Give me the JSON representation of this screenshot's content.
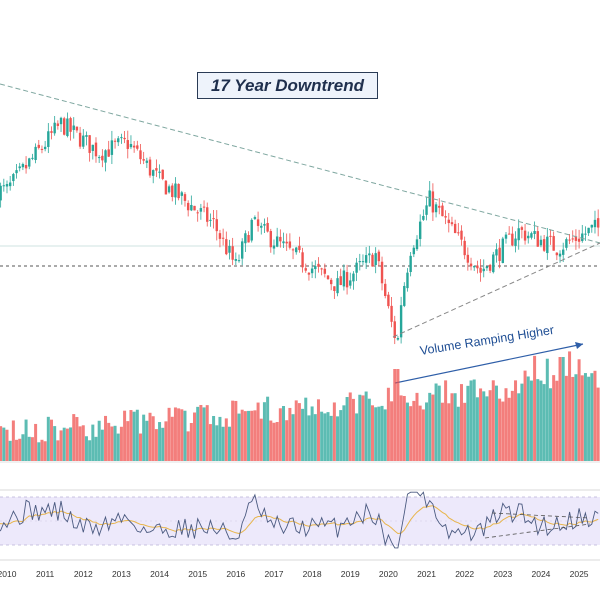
{
  "annotations": {
    "title": "17 Year Downtrend",
    "volume_note": "Volume Ramping Higher"
  },
  "colors": {
    "up": "#26a69a",
    "down": "#ef5350",
    "trendline": "#7fa7a0",
    "annotation_border": "#2a3b55",
    "arrow": "#2e5ea8",
    "rsi_line": "#4b5a80",
    "rsi_ma": "#e8b54b",
    "rsi_band": "#ede9fb"
  },
  "chart_data": [
    {
      "type": "candlestick",
      "period": "monthly",
      "x_tick_labels": [
        "2010",
        "2011",
        "2012",
        "2013",
        "2014",
        "2015",
        "2016",
        "2017",
        "2018",
        "2019",
        "2020",
        "2021",
        "2022",
        "2023",
        "2024",
        "2025"
      ],
      "approx_close_path": [
        {
          "x": "2010-01",
          "y": 0.62
        },
        {
          "x": "2011-06",
          "y": 0.9
        },
        {
          "x": "2012-06",
          "y": 0.78
        },
        {
          "x": "2013-03",
          "y": 0.82
        },
        {
          "x": "2014-01",
          "y": 0.66
        },
        {
          "x": "2015-06",
          "y": 0.48
        },
        {
          "x": "2016-01",
          "y": 0.3
        },
        {
          "x": "2016-06",
          "y": 0.48
        },
        {
          "x": "2017-06",
          "y": 0.36
        },
        {
          "x": "2018-09",
          "y": 0.22
        },
        {
          "x": "2019-09",
          "y": 0.35
        },
        {
          "x": "2020-03",
          "y": 0.0
        },
        {
          "x": "2020-08",
          "y": 0.38
        },
        {
          "x": "2021-02",
          "y": 0.58
        },
        {
          "x": "2022-06",
          "y": 0.28
        },
        {
          "x": "2023-06",
          "y": 0.45
        },
        {
          "x": "2024-06",
          "y": 0.38
        },
        {
          "x": "2025-06",
          "y": 0.46
        }
      ],
      "trendline_note": "descending resistance from 2010 and rising support from 2020 forming a converging wedge"
    },
    {
      "type": "bar",
      "name_note": "monthly volume, rising over time",
      "trend": "increasing"
    },
    {
      "type": "line",
      "name_note": "momentum oscillator with moving average",
      "band": [
        0.3,
        0.7
      ],
      "ylim": [
        0,
        1
      ]
    }
  ]
}
